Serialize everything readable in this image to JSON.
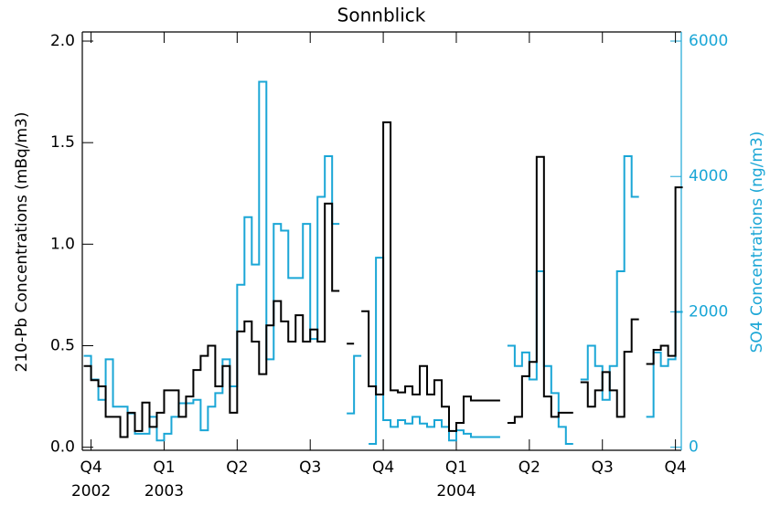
{
  "chart_data": {
    "type": "step",
    "title": "Sonnblick",
    "ylabel": "210-Pb Concentrations (mBq/m3)",
    "y2label": "SO4 Concentrations (ng/m3)",
    "x": [
      2002.725,
      2002.75,
      2002.775,
      2002.8,
      2002.825,
      2002.85,
      2002.875,
      2002.9,
      2002.925,
      2002.95,
      2002.975,
      2003.0,
      2003.025,
      2003.05,
      2003.075,
      2003.1,
      2003.125,
      2003.15,
      2003.175,
      2003.2,
      2003.225,
      2003.25,
      2003.275,
      2003.3,
      2003.325,
      2003.35,
      2003.375,
      2003.4,
      2003.425,
      2003.45,
      2003.475,
      2003.5,
      2003.525,
      2003.55,
      2003.575,
      2003.6,
      2003.625,
      2003.65,
      2003.675,
      2003.7,
      2003.725,
      2003.75,
      2003.775,
      2003.8,
      2003.825,
      2003.85,
      2003.875,
      2003.9,
      2003.925,
      2003.95,
      2003.975,
      2004.0,
      2004.025,
      2004.05,
      2004.075,
      2004.1,
      2004.125,
      2004.15,
      2004.175,
      2004.2,
      2004.225,
      2004.25,
      2004.275,
      2004.3,
      2004.325,
      2004.35,
      2004.375,
      2004.4,
      2004.425,
      2004.45,
      2004.475,
      2004.5,
      2004.525,
      2004.55,
      2004.575,
      2004.6,
      2004.625,
      2004.65,
      2004.675,
      2004.7,
      2004.725,
      2004.75
    ],
    "series": [
      {
        "name": "210-Pb",
        "color": "#000000",
        "values": [
          0.4,
          0.33,
          0.3,
          0.15,
          0.15,
          0.05,
          0.17,
          0.08,
          0.22,
          0.1,
          0.17,
          0.28,
          0.28,
          0.15,
          0.25,
          0.38,
          0.45,
          0.5,
          0.3,
          0.4,
          0.17,
          0.57,
          0.62,
          0.52,
          0.36,
          0.6,
          0.72,
          0.62,
          0.52,
          0.65,
          0.52,
          0.58,
          0.52,
          1.2,
          0.77,
          null,
          0.51,
          null,
          0.67,
          0.3,
          0.26,
          1.6,
          0.28,
          0.27,
          0.3,
          0.26,
          0.4,
          0.26,
          0.33,
          0.2,
          0.08,
          0.12,
          0.25,
          0.23,
          0.23,
          0.23,
          0.23,
          null,
          0.12,
          0.15,
          0.35,
          0.42,
          1.43,
          0.25,
          0.15,
          0.17,
          0.17,
          null,
          0.32,
          0.2,
          0.28,
          0.37,
          0.28,
          0.15,
          0.47,
          0.63,
          null,
          0.41,
          0.48,
          0.5,
          0.45,
          1.28
        ]
      },
      {
        "name": "SO4",
        "color": "#1aa6d6",
        "axis": "y2",
        "values": [
          1350,
          1000,
          700,
          1300,
          600,
          600,
          500,
          200,
          200,
          450,
          100,
          200,
          450,
          650,
          650,
          700,
          250,
          600,
          800,
          1300,
          900,
          2400,
          3400,
          2700,
          5400,
          1300,
          3300,
          3200,
          2500,
          2500,
          3300,
          1600,
          3700,
          4300,
          3300,
          null,
          500,
          1350,
          null,
          50,
          2800,
          400,
          300,
          400,
          350,
          450,
          350,
          300,
          400,
          300,
          100,
          250,
          200,
          150,
          150,
          150,
          150,
          null,
          1500,
          1200,
          1400,
          1000,
          2600,
          1200,
          800,
          300,
          50,
          null,
          1000,
          1500,
          1200,
          700,
          1200,
          2600,
          4300,
          3700,
          null,
          450,
          1400,
          1200,
          1300,
          2000
        ]
      }
    ],
    "xlim": [
      2002.72,
      2004.77
    ],
    "xticks": [
      {
        "value": 2002.75,
        "label": "Q4"
      },
      {
        "value": 2003.0,
        "label": "Q1"
      },
      {
        "value": 2003.25,
        "label": "Q2"
      },
      {
        "value": 2003.5,
        "label": "Q3"
      },
      {
        "value": 2003.75,
        "label": "Q4"
      },
      {
        "value": 2004.0,
        "label": "Q1"
      },
      {
        "value": 2004.25,
        "label": "Q2"
      },
      {
        "value": 2004.5,
        "label": "Q3"
      },
      {
        "value": 2004.75,
        "label": "Q4"
      }
    ],
    "year_labels": [
      {
        "value": 2002.75,
        "label": "2002"
      },
      {
        "value": 2003.0,
        "label": "2003"
      },
      {
        "value": 2004.0,
        "label": "2004"
      }
    ],
    "ylim": [
      -0.015,
      2.045
    ],
    "yticks": [
      {
        "value": 0,
        "label": "0.0"
      },
      0.5,
      {
        "value": 1,
        "label": "1.0"
      },
      1.5,
      {
        "value": 2,
        "label": "2.0"
      }
    ],
    "y2lim": [
      -45,
      6135
    ],
    "y2ticks": [
      0,
      2000,
      4000,
      6000
    ]
  }
}
